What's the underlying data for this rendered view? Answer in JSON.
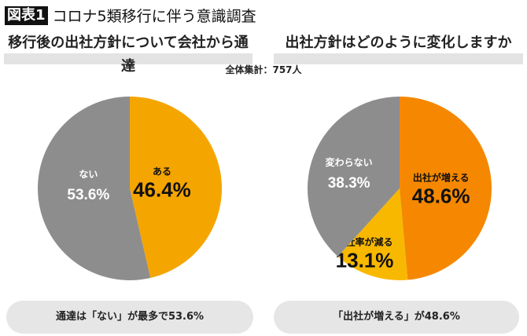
{
  "title": {
    "badge": "図表1",
    "text": "コロナ5類移行に伴う意識調査"
  },
  "total_label": "全体集計：757人",
  "colors": {
    "gray": "#8d8d8d",
    "amber": "#f5a500",
    "orange": "#f58800",
    "yellow": "#f8b800"
  },
  "chart_data": [
    {
      "type": "pie",
      "title": "移行後の出社方針について会社から通達",
      "slices": [
        {
          "label": "ある",
          "value": 46.4,
          "display": "46.4%",
          "color": "#f5a500",
          "text_color": "#111"
        },
        {
          "label": "ない",
          "value": 53.6,
          "display": "53.6%",
          "color": "#8d8d8d",
          "text_color": "#fff"
        }
      ],
      "summary": "通達は「ない」が最多で53.6%"
    },
    {
      "type": "pie",
      "title": "出社方針はどのように変化しますか",
      "slices": [
        {
          "label": "出社が増える",
          "value": 48.6,
          "display": "48.6%",
          "color": "#f58800",
          "text_color": "#111"
        },
        {
          "label": "出社率が減る",
          "value": 13.1,
          "display": "13.1%",
          "color": "#f8b800",
          "text_color": "#111"
        },
        {
          "label": "変わらない",
          "value": 38.3,
          "display": "38.3%",
          "color": "#8d8d8d",
          "text_color": "#fff"
        }
      ],
      "summary": "「出社が増える」が48.6%"
    }
  ]
}
